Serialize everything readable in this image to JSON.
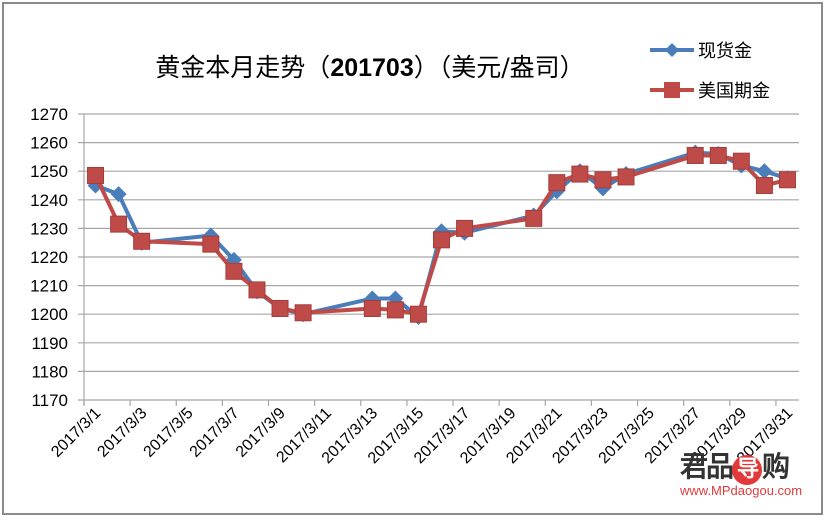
{
  "chart_data": {
    "type": "line",
    "title": "黄金本月走势（201703）（美元/盎司）",
    "title_parts": {
      "prefix": "黄金本月走势（",
      "bold": "201703",
      "suffix": "）（美元/盎司）"
    },
    "xlabel": "",
    "ylabel": "",
    "ylim": [
      1170,
      1270
    ],
    "yticks": [
      1270,
      1260,
      1250,
      1240,
      1230,
      1220,
      1210,
      1200,
      1190,
      1180,
      1170
    ],
    "xtick_labels": [
      "2017/3/1",
      "2017/3/3",
      "2017/3/5",
      "2017/3/7",
      "2017/3/9",
      "2017/3/11",
      "2017/3/13",
      "2017/3/15",
      "2017/3/17",
      "2017/3/19",
      "2017/3/21",
      "2017/3/23",
      "2017/3/25",
      "2017/3/27",
      "2017/3/29",
      "2017/3/31"
    ],
    "grid": true,
    "legend_position": "top-right",
    "x_days": [
      1,
      2,
      3,
      6,
      7,
      8,
      9,
      10,
      13,
      14,
      15,
      16,
      17,
      20,
      21,
      22,
      23,
      24,
      27,
      28,
      29,
      30,
      31
    ],
    "series": [
      {
        "name": "现货金",
        "color": "#4a7ebb",
        "marker": "diamond",
        "values": [
          1245,
          1242,
          1225,
          1227.5,
          1219,
          1208,
          1202,
          1200,
          1205.5,
          1205.5,
          1199,
          1229,
          1228.5,
          1234.5,
          1243,
          1250,
          1244,
          1249,
          1256.5,
          1256,
          1252,
          1250,
          1247.5
        ]
      },
      {
        "name": "美国期金",
        "color": "#be4b48",
        "marker": "square",
        "values": [
          1248.5,
          1231.5,
          1225.5,
          1224.5,
          1215,
          1208.5,
          1202,
          1200.5,
          1202,
          1201.5,
          1200,
          1226,
          1230,
          1233.5,
          1246,
          1249,
          1247,
          1248,
          1255.5,
          1255.5,
          1253.5,
          1245,
          1247
        ]
      }
    ]
  },
  "legend": {
    "items": [
      {
        "label": "现货金"
      },
      {
        "label": "美国期金"
      }
    ]
  },
  "watermark": {
    "brand_a": "君品",
    "brand_b": "导",
    "brand_c": "购",
    "url": "www.MPdaogou.com"
  }
}
